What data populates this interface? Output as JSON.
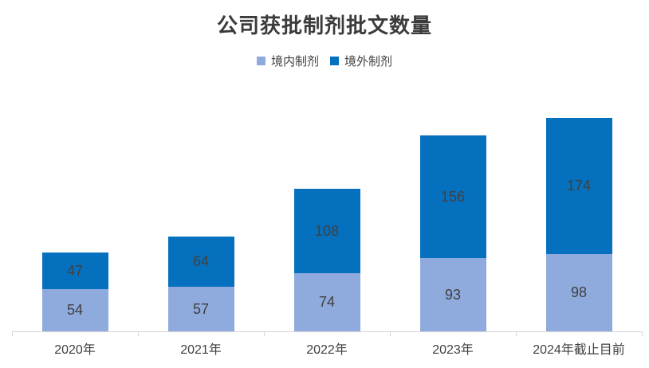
{
  "chart_data": {
    "type": "bar",
    "stacked": true,
    "title": "公司获批制剂批文数量",
    "categories": [
      "2020年",
      "2021年",
      "2022年",
      "2023年",
      "2024年截止目前"
    ],
    "series": [
      {
        "name": "境内制剂",
        "color": "#8FAADC",
        "values": [
          54,
          57,
          74,
          93,
          98
        ]
      },
      {
        "name": "境外制剂",
        "color": "#0571BE",
        "values": [
          47,
          64,
          108,
          156,
          174
        ]
      }
    ],
    "totals": [
      101,
      121,
      182,
      249,
      272
    ],
    "ylim": [
      0,
      280
    ],
    "xlabel": "",
    "ylabel": "",
    "grid": false,
    "legend_position": "top",
    "data_labels": true,
    "label_color": "#404040",
    "title_color": "#3b3b3b",
    "axis_line_color": "#d6d6d6"
  }
}
